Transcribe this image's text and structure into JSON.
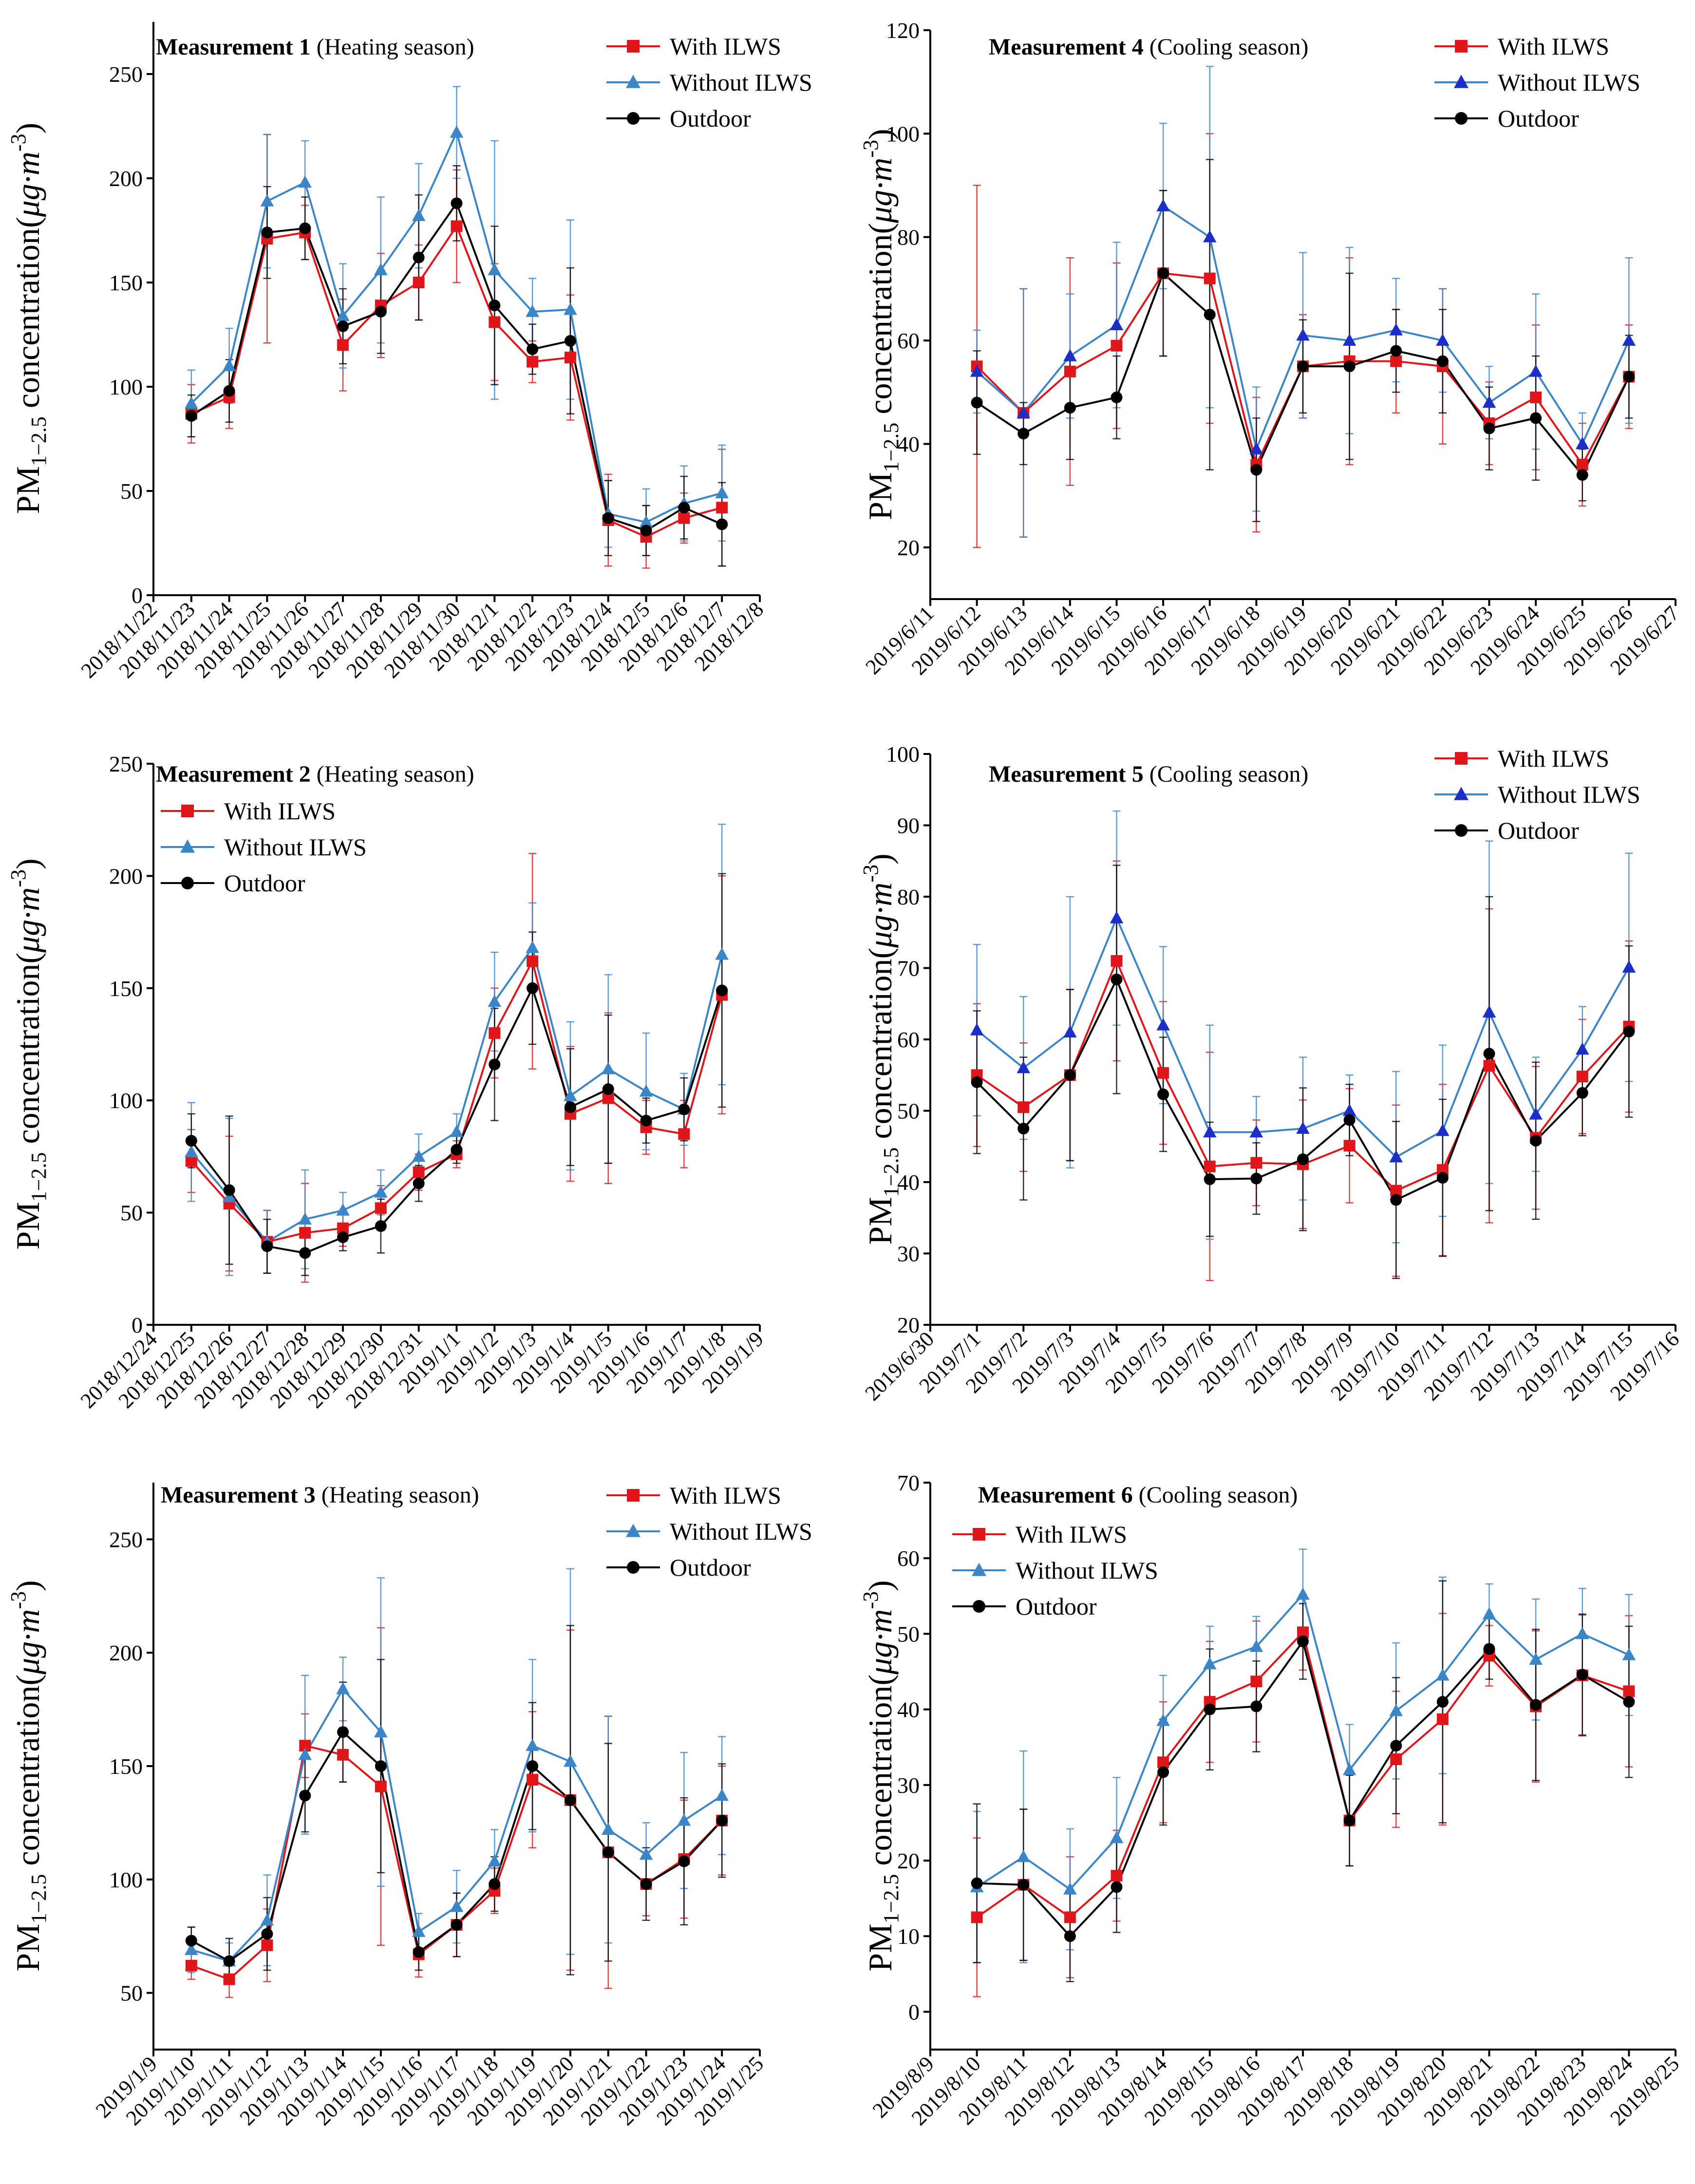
{
  "figure": {
    "ylabel_main": "PM",
    "ylabel_sub": "1−2.5",
    "ylabel_rest": " concentration(",
    "ylabel_mu": "μg·m",
    "ylabel_sup": "-3",
    "ylabel_close": ")",
    "colors": {
      "with": "#e0161b",
      "without": "#3b86c9",
      "outdoor": "#000000",
      "without_m45": "#1c2ec8"
    }
  },
  "chart_data": [
    {
      "type": "line",
      "title_bold": "Measurement 1",
      "title_normal": "(Heating season)",
      "ylim": [
        0,
        275
      ],
      "yticks": [
        0,
        50,
        100,
        150,
        200,
        250
      ],
      "legend_pos": "top-right",
      "x_ticks": [
        "2018/11/22",
        "2018/11/23",
        "2018/11/24",
        "2018/11/25",
        "2018/11/26",
        "2018/11/27",
        "2018/11/28",
        "2018/11/29",
        "2018/11/30",
        "2018/12/1",
        "2018/12/2",
        "2018/12/3",
        "2018/12/4",
        "2018/12/5",
        "2018/12/6",
        "2018/12/7",
        "2018/12/8"
      ],
      "series": [
        {
          "name": "With ILWS",
          "key": "with",
          "marker": "square",
          "values": [
            87,
            95,
            171,
            174,
            120,
            139,
            150,
            177,
            131,
            112,
            114,
            36,
            28,
            37,
            42
          ],
          "err": [
            14,
            15,
            50,
            13,
            22,
            25,
            18,
            27,
            28,
            10,
            30,
            22,
            15,
            12,
            28
          ]
        },
        {
          "name": "Without ILWS",
          "key": "without",
          "marker": "triangle",
          "values": [
            92,
            110,
            189,
            198,
            134,
            156,
            182,
            222,
            156,
            136,
            137,
            39,
            35,
            44,
            49
          ],
          "err": [
            16,
            18,
            32,
            20,
            25,
            35,
            25,
            22,
            62,
            16,
            43,
            16,
            16,
            18,
            23
          ]
        },
        {
          "name": "Outdoor",
          "key": "outdoor",
          "marker": "circle",
          "values": [
            86,
            98,
            174,
            176,
            129,
            136,
            162,
            188,
            139,
            118,
            122,
            37,
            31,
            42,
            34
          ],
          "err": [
            10,
            15,
            22,
            15,
            18,
            20,
            30,
            18,
            38,
            12,
            35,
            18,
            12,
            15,
            20
          ]
        }
      ]
    },
    {
      "type": "line",
      "title_bold": "Measurement 4",
      "title_normal": "(Cooling season)",
      "ylim": [
        10,
        120
      ],
      "yticks": [
        20,
        40,
        60,
        80,
        100,
        120
      ],
      "legend_pos": "top-right",
      "x_ticks": [
        "2019/6/11",
        "2019/6/12",
        "2019/6/13",
        "2019/6/14",
        "2019/6/15",
        "2019/6/16",
        "2019/6/17",
        "2019/6/18",
        "2019/6/19",
        "2019/6/20",
        "2019/6/21",
        "2019/6/22",
        "2019/6/23",
        "2019/6/24",
        "2019/6/25",
        "2019/6/26",
        "2019/6/27"
      ],
      "series": [
        {
          "name": "With ILWS",
          "key": "with",
          "marker": "square",
          "values": [
            55,
            46,
            54,
            59,
            73,
            72,
            36,
            55,
            56,
            56,
            55,
            44,
            49,
            36,
            53
          ],
          "err": [
            35,
            24,
            22,
            16,
            16,
            28,
            13,
            10,
            20,
            10,
            15,
            8,
            14,
            8,
            10
          ]
        },
        {
          "name": "Without ILWS",
          "key": "without_m45",
          "line_key": "without",
          "marker": "triangle",
          "values": [
            54,
            46,
            57,
            63,
            86,
            80,
            39,
            61,
            60,
            62,
            60,
            48,
            54,
            40,
            60
          ],
          "err": [
            8,
            24,
            12,
            16,
            16,
            33,
            12,
            16,
            18,
            10,
            10,
            7,
            15,
            6,
            16
          ]
        },
        {
          "name": "Outdoor",
          "key": "outdoor",
          "marker": "circle",
          "values": [
            48,
            42,
            47,
            49,
            73,
            65,
            35,
            55,
            55,
            58,
            56,
            43,
            45,
            34,
            53
          ],
          "err": [
            10,
            6,
            10,
            8,
            16,
            30,
            10,
            9,
            18,
            8,
            10,
            8,
            12,
            5,
            8
          ]
        }
      ]
    },
    {
      "type": "line",
      "title_bold": "Measurement 2",
      "title_normal": "(Heating season)",
      "ylim": [
        0,
        250
      ],
      "yticks": [
        0,
        50,
        100,
        150,
        200,
        250
      ],
      "legend_pos": "top-left",
      "x_ticks": [
        "2018/12/24",
        "2018/12/25",
        "2018/12/26",
        "2018/12/27",
        "2018/12/28",
        "2018/12/29",
        "2018/12/30",
        "2018/12/31",
        "2019/1/1",
        "2019/1/2",
        "2019/1/3",
        "2019/1/4",
        "2019/1/5",
        "2019/1/6",
        "2019/1/7",
        "2019/1/8",
        "2019/1/9"
      ],
      "series": [
        {
          "name": "With ILWS",
          "key": "with",
          "marker": "square",
          "values": [
            73,
            54,
            37,
            41,
            43,
            52,
            68,
            76,
            130,
            162,
            94,
            101,
            88,
            85,
            147
          ],
          "err": [
            14,
            30,
            14,
            22,
            8,
            10,
            8,
            6,
            20,
            48,
            30,
            38,
            12,
            15,
            53
          ]
        },
        {
          "name": "Without ILWS",
          "key": "without",
          "marker": "triangle",
          "values": [
            77,
            57,
            37,
            47,
            51,
            59,
            75,
            86,
            144,
            168,
            102,
            114,
            104,
            96,
            165
          ],
          "err": [
            22,
            35,
            14,
            22,
            8,
            10,
            10,
            8,
            22,
            20,
            33,
            42,
            26,
            16,
            58
          ]
        },
        {
          "name": "Outdoor",
          "key": "outdoor",
          "marker": "circle",
          "values": [
            82,
            60,
            35,
            32,
            39,
            44,
            63,
            78,
            116,
            150,
            97,
            105,
            91,
            96,
            149
          ],
          "err": [
            12,
            33,
            12,
            10,
            6,
            12,
            8,
            6,
            25,
            25,
            26,
            33,
            10,
            14,
            52
          ]
        }
      ]
    },
    {
      "type": "line",
      "title_bold": "Measurement 5",
      "title_normal": "(Cooling season)",
      "ylim": [
        20,
        100
      ],
      "yticks": [
        20,
        30,
        40,
        50,
        60,
        70,
        80,
        90,
        100
      ],
      "legend_pos": "top-right",
      "x_ticks": [
        "2019/6/30",
        "2019/7/1",
        "2019/7/2",
        "2019/7/3",
        "2019/7/4",
        "2019/7/5",
        "2019/7/6",
        "2019/7/7",
        "2019/7/8",
        "2019/7/9",
        "2019/7/10",
        "2019/7/11",
        "2019/7/12",
        "2019/7/13",
        "2019/7/14",
        "2019/7/15",
        "2019/7/16"
      ],
      "series": [
        {
          "name": "With ILWS",
          "key": "with",
          "marker": "square",
          "values": [
            55,
            50.5,
            55,
            71,
            55.3,
            42.2,
            42.7,
            42.5,
            45.1,
            38.8,
            41.7,
            56.3,
            46.2,
            54.8,
            61.8
          ],
          "err": [
            10,
            9,
            12,
            14,
            10,
            16,
            6,
            9,
            8,
            12,
            12,
            22,
            10,
            8,
            12
          ]
        },
        {
          "name": "Without ILWS",
          "key": "without_m45",
          "line_key": "without",
          "marker": "triangle",
          "values": [
            61.3,
            56,
            61,
            77,
            62,
            47,
            47,
            47.5,
            50,
            43.5,
            47.2,
            63.8,
            49.5,
            58.6,
            70.1
          ],
          "err": [
            12,
            10,
            19,
            15,
            11,
            15,
            5,
            10,
            5,
            12,
            12,
            24,
            8,
            6,
            16
          ]
        },
        {
          "name": "Outdoor",
          "key": "outdoor",
          "marker": "circle",
          "values": [
            54,
            47.5,
            55,
            68.4,
            52.3,
            40.4,
            40.5,
            43.2,
            48.7,
            37.5,
            40.6,
            58,
            45.8,
            52.5,
            61.1
          ],
          "err": [
            10,
            10,
            12,
            16,
            8,
            8,
            5,
            10,
            5,
            11,
            11,
            22,
            11,
            6,
            12
          ]
        }
      ]
    },
    {
      "type": "line",
      "title_bold": "Measurement 3",
      "title_normal": "(Heating season)",
      "ylim": [
        25,
        275
      ],
      "yticks": [
        50,
        100,
        150,
        200,
        250
      ],
      "legend_pos": "top-right",
      "x_ticks": [
        "2019/1/9",
        "2019/1/10",
        "2019/1/11",
        "2019/1/12",
        "2019/1/13",
        "2019/1/14",
        "2019/1/15",
        "2019/1/16",
        "2019/1/17",
        "2019/1/18",
        "2019/1/19",
        "2019/1/20",
        "2019/1/21",
        "2019/1/22",
        "2019/1/23",
        "2019/1/24",
        "2019/1/25"
      ],
      "series": [
        {
          "name": "With ILWS",
          "key": "with",
          "marker": "square",
          "values": [
            62,
            56,
            71,
            159,
            155,
            141,
            67,
            80,
            95,
            144,
            135,
            112,
            98,
            109,
            126
          ],
          "err": [
            6,
            8,
            16,
            14,
            12,
            70,
            10,
            14,
            10,
            30,
            75,
            60,
            14,
            26,
            24
          ]
        },
        {
          "name": "Without ILWS",
          "key": "without",
          "marker": "triangle",
          "values": [
            69,
            64,
            82,
            155,
            184,
            165,
            77,
            88,
            108,
            159,
            152,
            122,
            111,
            126,
            137
          ],
          "err": [
            10,
            8,
            20,
            35,
            14,
            68,
            8,
            16,
            14,
            38,
            85,
            50,
            14,
            30,
            26
          ]
        },
        {
          "name": "Outdoor",
          "key": "outdoor",
          "marker": "circle",
          "values": [
            73,
            64,
            76,
            137,
            165,
            150,
            68,
            80,
            98,
            150,
            135,
            112,
            98,
            108,
            126
          ],
          "err": [
            6,
            10,
            16,
            16,
            22,
            47,
            8,
            14,
            12,
            28,
            77,
            48,
            16,
            28,
            25
          ]
        }
      ]
    },
    {
      "type": "line",
      "title_bold": "Measurement 6",
      "title_normal": "(Cooling season)",
      "ylim": [
        -5,
        70
      ],
      "yticks": [
        0,
        10,
        20,
        30,
        40,
        50,
        60,
        70
      ],
      "legend_pos": "top-left",
      "x_ticks": [
        "2019/8/9",
        "2019/8/10",
        "2019/8/11",
        "2019/8/12",
        "2019/8/13",
        "2019/8/14",
        "2019/8/15",
        "2019/8/16",
        "2019/8/17",
        "2019/8/18",
        "2019/8/19",
        "2019/8/20",
        "2019/8/21",
        "2019/8/22",
        "2019/8/23",
        "2019/8/24",
        "2019/8/25"
      ],
      "series": [
        {
          "name": "With ILWS",
          "key": "with",
          "marker": "square",
          "values": [
            12.5,
            16.8,
            12.5,
            18,
            33,
            41,
            43.7,
            50.2,
            25.3,
            33.4,
            38.7,
            47.1,
            40.4,
            44.5,
            42.4
          ],
          "err": [
            10.5,
            10,
            8,
            6,
            8,
            8,
            8,
            5,
            6,
            9,
            14,
            4,
            10,
            8,
            10
          ]
        },
        {
          "name": "Without ILWS",
          "key": "without",
          "marker": "triangle",
          "values": [
            16.5,
            20.5,
            16.2,
            23,
            38.5,
            46,
            48.3,
            55.2,
            32,
            39.8,
            44.5,
            52.6,
            46.6,
            50,
            47.2
          ],
          "err": [
            10,
            14,
            8,
            8,
            6,
            5,
            4,
            6,
            6,
            9,
            13,
            4,
            8,
            6,
            8
          ]
        },
        {
          "name": "Outdoor",
          "key": "outdoor",
          "marker": "circle",
          "values": [
            17,
            16.8,
            10,
            16.5,
            31.7,
            40,
            40.4,
            49,
            25.3,
            35.2,
            41,
            48,
            40.6,
            44.6,
            41
          ],
          "err": [
            10.5,
            10,
            6,
            6,
            7,
            8,
            6,
            5,
            6,
            9,
            16,
            4,
            10,
            8,
            10
          ]
        }
      ]
    }
  ]
}
